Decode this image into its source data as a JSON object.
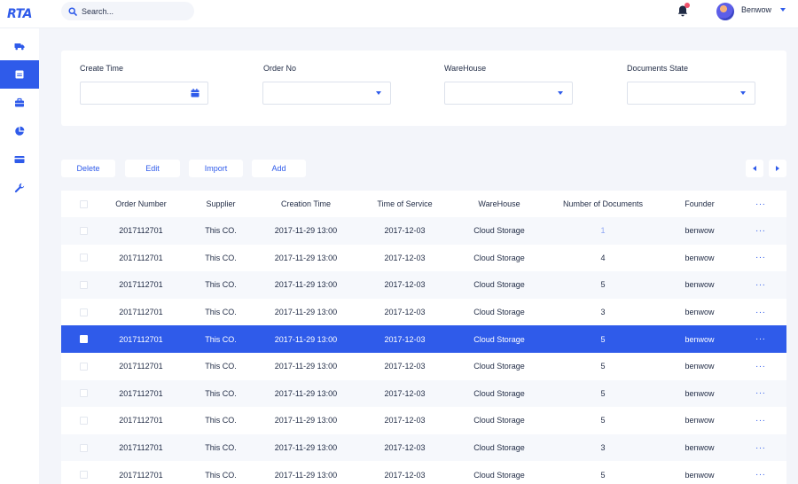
{
  "app": {
    "logo": "RTA"
  },
  "header": {
    "search_placeholder": "Search...",
    "username": "Benwow"
  },
  "sidebar": {
    "items": [
      {
        "icon": "truck-icon",
        "active": false
      },
      {
        "icon": "document-icon",
        "active": true
      },
      {
        "icon": "briefcase-icon",
        "active": false
      },
      {
        "icon": "pie-chart-icon",
        "active": false
      },
      {
        "icon": "credit-card-icon",
        "active": false
      },
      {
        "icon": "wrench-icon",
        "active": false
      }
    ]
  },
  "filters": {
    "create_time": {
      "label": "Create Time",
      "value": ""
    },
    "order_no": {
      "label": "Order No",
      "value": ""
    },
    "warehouse": {
      "label": "WareHouse",
      "value": ""
    },
    "documents_state": {
      "label": "Documents State",
      "value": ""
    }
  },
  "actions": {
    "delete": "Delete",
    "edit": "Edit",
    "import": "Import",
    "add": "Add"
  },
  "table": {
    "columns": {
      "order_number": "Order Number",
      "supplier": "Supplier",
      "creation_time": "Creation Time",
      "time_of_service": "Time of Service",
      "warehouse": "WareHouse",
      "number_of_documents": "Number of Documents",
      "founder": "Founder",
      "more": "···"
    },
    "rows": [
      {
        "order_number": "2017112701",
        "supplier": "This CO.",
        "creation_time": "2017-11-29  13:00",
        "time_of_service": "2017-12-03",
        "warehouse": "Cloud Storage",
        "number_of_documents": "1",
        "founder": "benwow",
        "selected": false
      },
      {
        "order_number": "2017112701",
        "supplier": "This CO.",
        "creation_time": "2017-11-29  13:00",
        "time_of_service": "2017-12-03",
        "warehouse": "Cloud Storage",
        "number_of_documents": "4",
        "founder": "benwow",
        "selected": false
      },
      {
        "order_number": "2017112701",
        "supplier": "This CO.",
        "creation_time": "2017-11-29  13:00",
        "time_of_service": "2017-12-03",
        "warehouse": "Cloud Storage",
        "number_of_documents": "5",
        "founder": "benwow",
        "selected": false
      },
      {
        "order_number": "2017112701",
        "supplier": "This CO.",
        "creation_time": "2017-11-29  13:00",
        "time_of_service": "2017-12-03",
        "warehouse": "Cloud Storage",
        "number_of_documents": "3",
        "founder": "benwow",
        "selected": false
      },
      {
        "order_number": "2017112701",
        "supplier": "This CO.",
        "creation_time": "2017-11-29  13:00",
        "time_of_service": "2017-12-03",
        "warehouse": "Cloud Storage",
        "number_of_documents": "5",
        "founder": "benwow",
        "selected": true
      },
      {
        "order_number": "2017112701",
        "supplier": "This CO.",
        "creation_time": "2017-11-29  13:00",
        "time_of_service": "2017-12-03",
        "warehouse": "Cloud Storage",
        "number_of_documents": "5",
        "founder": "benwow",
        "selected": false
      },
      {
        "order_number": "2017112701",
        "supplier": "This CO.",
        "creation_time": "2017-11-29  13:00",
        "time_of_service": "2017-12-03",
        "warehouse": "Cloud Storage",
        "number_of_documents": "5",
        "founder": "benwow",
        "selected": false
      },
      {
        "order_number": "2017112701",
        "supplier": "This CO.",
        "creation_time": "2017-11-29  13:00",
        "time_of_service": "2017-12-03",
        "warehouse": "Cloud Storage",
        "number_of_documents": "5",
        "founder": "benwow",
        "selected": false
      },
      {
        "order_number": "2017112701",
        "supplier": "This CO.",
        "creation_time": "2017-11-29  13:00",
        "time_of_service": "2017-12-03",
        "warehouse": "Cloud Storage",
        "number_of_documents": "3",
        "founder": "benwow",
        "selected": false
      },
      {
        "order_number": "2017112701",
        "supplier": "This CO.",
        "creation_time": "2017-11-29  13:00",
        "time_of_service": "2017-12-03",
        "warehouse": "Cloud Storage",
        "number_of_documents": "5",
        "founder": "benwow",
        "selected": false
      }
    ]
  },
  "colors": {
    "accent": "#2f5bea",
    "background": "#f3f5fa",
    "notification": "#f0526c"
  }
}
